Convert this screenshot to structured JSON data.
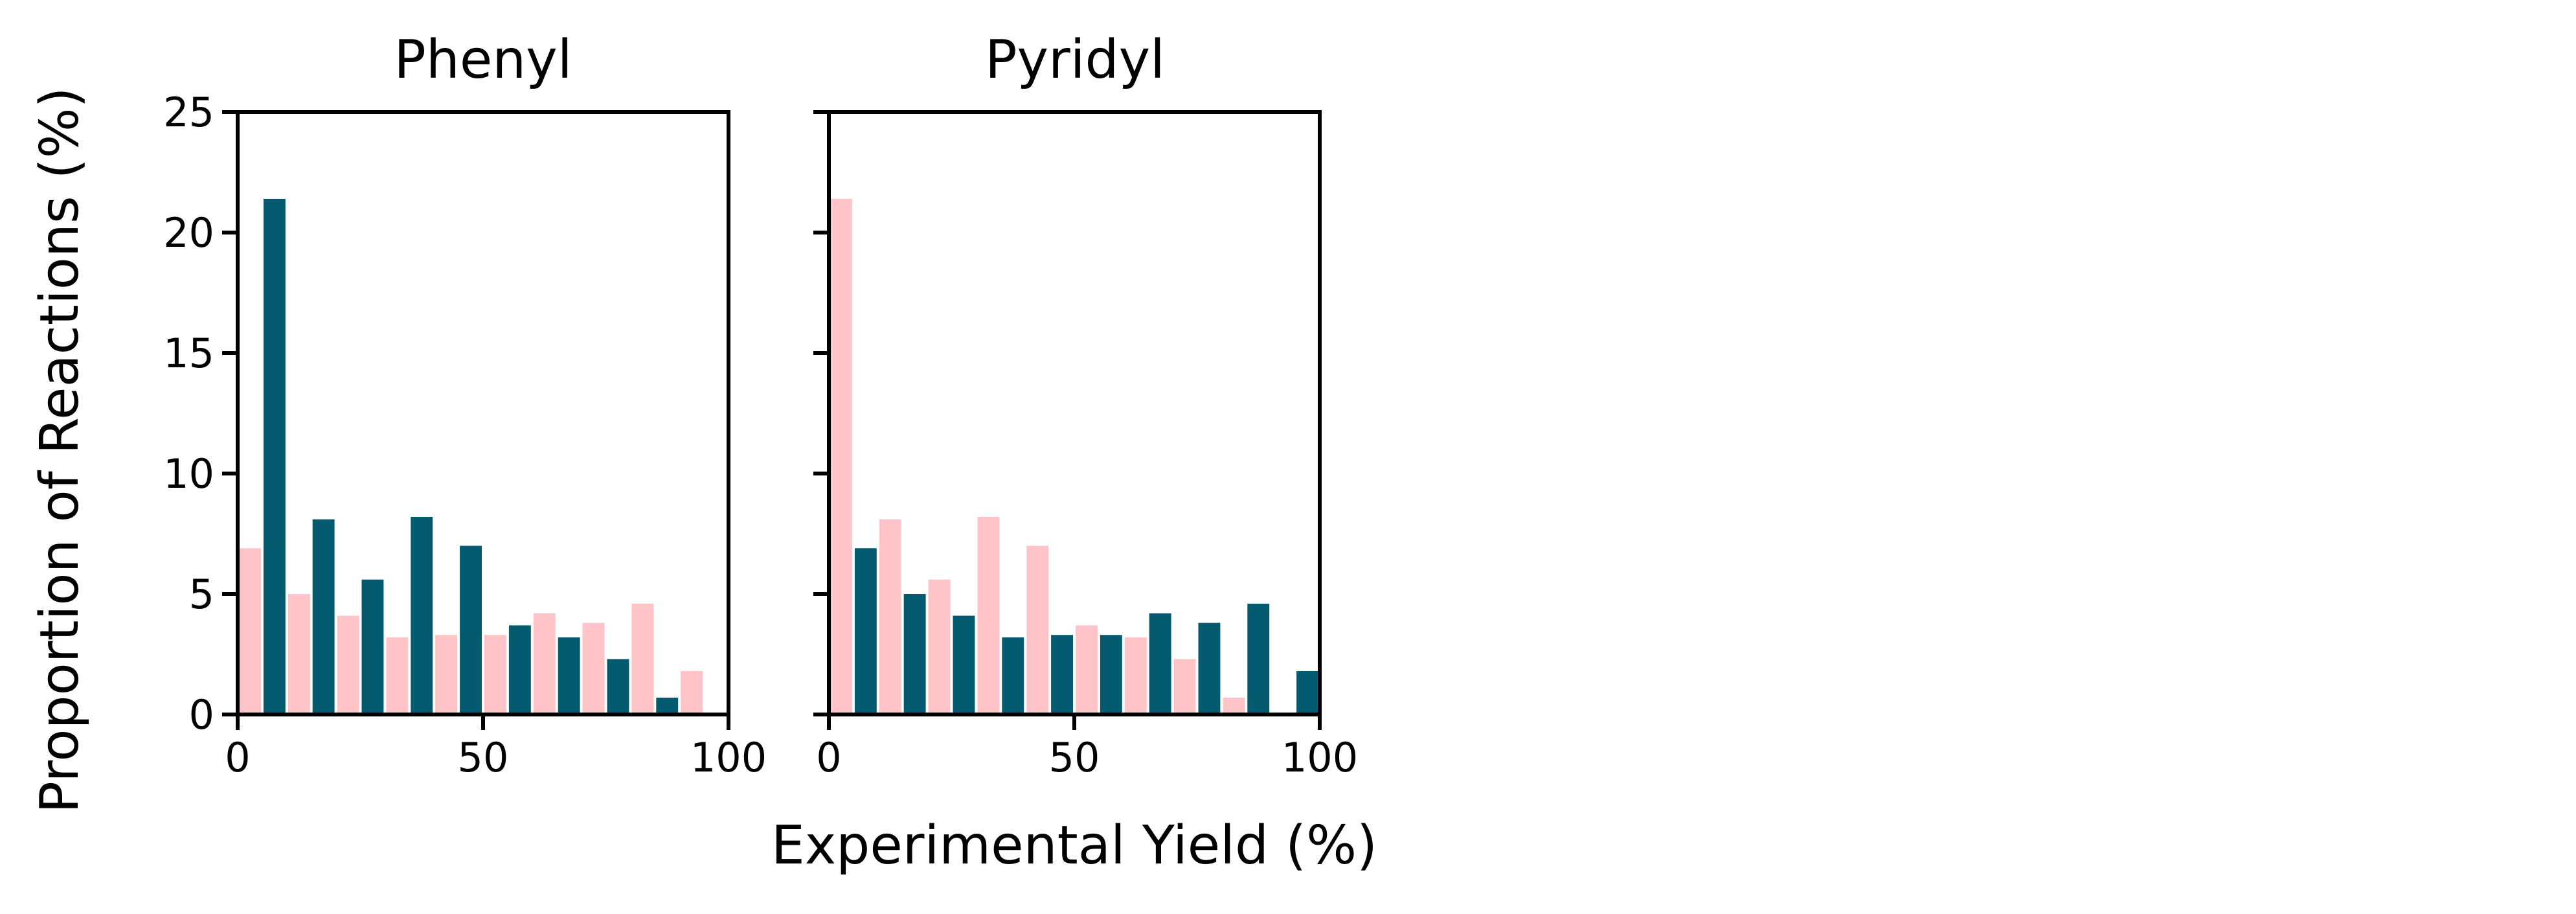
{
  "figure": {
    "ylabel": "Proportion of Reactions (%)",
    "xlabel": "Experimental Yield (%)"
  },
  "colors": {
    "teal": "#045a6e",
    "pink": "#ffc4c8",
    "axes": "#000000"
  },
  "chart_data": [
    {
      "type": "bar",
      "title": "Phenyl",
      "xlim": [
        0,
        100
      ],
      "ylim": [
        0,
        25
      ],
      "xticks": [
        0,
        50,
        100
      ],
      "yticks": [
        0,
        5,
        10,
        15,
        20,
        25
      ],
      "bin_edges": [
        0,
        10,
        20,
        30,
        40,
        50,
        60,
        70,
        80,
        90,
        100
      ],
      "series": [
        {
          "color": "#ffc4c8",
          "values": [
            6.9,
            5.0,
            4.1,
            3.2,
            3.3,
            3.3,
            4.2,
            3.8,
            4.6,
            1.8
          ]
        },
        {
          "color": "#045a6e",
          "values": [
            21.4,
            8.1,
            5.6,
            8.2,
            7.0,
            3.7,
            3.2,
            2.3,
            0.7,
            0
          ]
        }
      ]
    },
    {
      "type": "bar",
      "title": "Pyridyl",
      "xlim": [
        0,
        100
      ],
      "ylim": [
        0,
        25
      ],
      "xticks": [
        0,
        50,
        100
      ],
      "yticks": [
        0,
        5,
        10,
        15,
        20,
        25
      ],
      "bin_edges": [
        0,
        10,
        20,
        30,
        40,
        50,
        60,
        70,
        80,
        90,
        100
      ],
      "series": [
        {
          "color": "#ffc4c8",
          "values": [
            21.4,
            8.1,
            5.6,
            8.2,
            7.0,
            3.7,
            3.2,
            2.3,
            0.7,
            0
          ]
        },
        {
          "color": "#045a6e",
          "values": [
            6.9,
            5.0,
            4.1,
            3.2,
            3.3,
            3.3,
            4.2,
            3.8,
            4.6,
            1.8
          ]
        }
      ]
    }
  ]
}
